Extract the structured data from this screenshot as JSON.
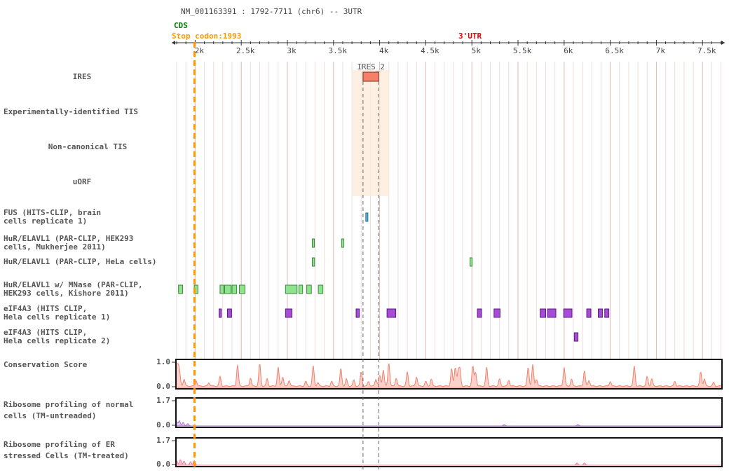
{
  "header": {
    "title": "NM_001163391 : 1792-7711 (chr6) -- 3UTR",
    "cds_label": "CDS",
    "stop_codon_label": "Stop codon:1993",
    "utr_label": "3'UTR"
  },
  "colors": {
    "cds": "#008000",
    "stop_codon": "#ff9900",
    "utr": "#ee0000",
    "ires": "#f4806c",
    "ires_highlight": "#fdebd9",
    "fus": "#5bb7e0",
    "hur": "#8fe38f",
    "eif4a3": "#a64dd6",
    "conservation": "#f4806c",
    "ribo_normal": "#b06fd8",
    "ribo_er": "#f47c9a",
    "gridline": "#e8c7c7"
  },
  "axis": {
    "range": [
      1792,
      7711
    ],
    "tick_labels": [
      "2k",
      "2.5k",
      "3k",
      "3.5k",
      "4k",
      "4.5k",
      "5k",
      "5.5k",
      "6k",
      "6.5k",
      "7k",
      "7.5k"
    ],
    "tick_values": [
      2000,
      2500,
      3000,
      3500,
      4000,
      4500,
      5000,
      5500,
      6000,
      6500,
      7000,
      7500
    ],
    "stop_codon_position": 1993
  },
  "tracks": [
    {
      "label": "IRES",
      "type": "ires",
      "features": [
        {
          "name": "IRES_2",
          "start": 3820,
          "end": 3990
        }
      ]
    },
    {
      "label": "Experimentally-identified TIS",
      "type": "empty",
      "features": []
    },
    {
      "label": "Non-canonical TIS",
      "type": "empty",
      "features": []
    },
    {
      "label": "uORF",
      "type": "empty",
      "features": []
    },
    {
      "label": "FUS (HITS-CLIP, brain\ncells replicate 1)",
      "type": "fus",
      "features": [
        {
          "start": 3850,
          "end": 3862
        }
      ]
    },
    {
      "label": "HuR/ELAVL1 (PAR-CLIP, HEK293\ncells, Mukherjee 2011)",
      "type": "hur",
      "features": [
        {
          "start": 3270,
          "end": 3288
        },
        {
          "start": 3588,
          "end": 3603
        }
      ]
    },
    {
      "label": "HuR/ELAVL1 (PAR-CLIP, HeLa cells)",
      "type": "hur",
      "features": [
        {
          "start": 3270,
          "end": 3295
        },
        {
          "start": 4980,
          "end": 4998
        }
      ]
    },
    {
      "label": "HuR/ELAVL1 w/ MNase (PAR-CLIP,\nHEK293 cells, Kishore 2011)",
      "type": "hur",
      "features": [
        {
          "start": 1820,
          "end": 1865
        },
        {
          "start": 1990,
          "end": 2030
        },
        {
          "start": 2270,
          "end": 2310
        },
        {
          "start": 2320,
          "end": 2390
        },
        {
          "start": 2400,
          "end": 2450
        },
        {
          "start": 2480,
          "end": 2540
        },
        {
          "start": 2980,
          "end": 3105
        },
        {
          "start": 3125,
          "end": 3165
        },
        {
          "start": 3210,
          "end": 3260
        },
        {
          "start": 3335,
          "end": 3385
        }
      ]
    },
    {
      "label": "eIF4A3 (HITS CLIP,\nHela cells replicate 1)",
      "type": "eif4a3",
      "features": [
        {
          "start": 2260,
          "end": 2285
        },
        {
          "start": 2350,
          "end": 2395
        },
        {
          "start": 2980,
          "end": 3050
        },
        {
          "start": 3745,
          "end": 3780
        },
        {
          "start": 4080,
          "end": 4175
        },
        {
          "start": 5060,
          "end": 5105
        },
        {
          "start": 5240,
          "end": 5305
        },
        {
          "start": 5740,
          "end": 5800
        },
        {
          "start": 5820,
          "end": 5910
        },
        {
          "start": 5995,
          "end": 6085
        },
        {
          "start": 6245,
          "end": 6290
        },
        {
          "start": 6370,
          "end": 6415
        },
        {
          "start": 6440,
          "end": 6485
        }
      ]
    },
    {
      "label": "eIF4A3 (HITS CLIP,\nHela cells replicate 2)",
      "type": "eif4a3",
      "features": [
        {
          "start": 6110,
          "end": 6150
        }
      ]
    }
  ],
  "signal_tracks": [
    {
      "label": "Conservation Score",
      "ymax": "1.0",
      "ymin": "0.0",
      "type": "conservation",
      "peaks": [
        {
          "x": 1795,
          "h": 0.95
        },
        {
          "x": 1810,
          "h": 0.9
        },
        {
          "x": 1830,
          "h": 0.6
        },
        {
          "x": 1880,
          "h": 0.3
        },
        {
          "x": 2010,
          "h": 0.25
        },
        {
          "x": 2150,
          "h": 0.15
        },
        {
          "x": 2270,
          "h": 0.4
        },
        {
          "x": 2460,
          "h": 0.9
        },
        {
          "x": 2600,
          "h": 0.35
        },
        {
          "x": 2700,
          "h": 0.95
        },
        {
          "x": 2780,
          "h": 0.3
        },
        {
          "x": 2900,
          "h": 0.8
        },
        {
          "x": 2950,
          "h": 0.4
        },
        {
          "x": 3020,
          "h": 0.25
        },
        {
          "x": 3200,
          "h": 0.2
        },
        {
          "x": 3280,
          "h": 0.85
        },
        {
          "x": 3330,
          "h": 0.15
        },
        {
          "x": 3480,
          "h": 0.2
        },
        {
          "x": 3580,
          "h": 0.75
        },
        {
          "x": 3640,
          "h": 0.3
        },
        {
          "x": 3720,
          "h": 0.25
        },
        {
          "x": 3800,
          "h": 0.6
        },
        {
          "x": 3880,
          "h": 0.2
        },
        {
          "x": 3960,
          "h": 0.3
        },
        {
          "x": 4000,
          "h": 0.45
        },
        {
          "x": 4040,
          "h": 0.7
        },
        {
          "x": 4100,
          "h": 1.0
        },
        {
          "x": 4180,
          "h": 0.35
        },
        {
          "x": 4300,
          "h": 0.6
        },
        {
          "x": 4400,
          "h": 0.4
        },
        {
          "x": 4500,
          "h": 0.2
        },
        {
          "x": 4560,
          "h": 0.3
        },
        {
          "x": 4780,
          "h": 0.75
        },
        {
          "x": 4820,
          "h": 0.8
        },
        {
          "x": 4850,
          "h": 0.55
        },
        {
          "x": 4870,
          "h": 0.7
        },
        {
          "x": 5010,
          "h": 0.85
        },
        {
          "x": 5040,
          "h": 0.6
        },
        {
          "x": 5160,
          "h": 0.8
        },
        {
          "x": 5300,
          "h": 0.3
        },
        {
          "x": 5400,
          "h": 0.25
        },
        {
          "x": 5610,
          "h": 0.8
        },
        {
          "x": 5660,
          "h": 0.9
        },
        {
          "x": 5700,
          "h": 0.3
        },
        {
          "x": 6000,
          "h": 0.8
        },
        {
          "x": 6080,
          "h": 0.3
        },
        {
          "x": 6220,
          "h": 0.65
        },
        {
          "x": 6270,
          "h": 0.25
        },
        {
          "x": 6500,
          "h": 0.2
        },
        {
          "x": 6760,
          "h": 0.85
        },
        {
          "x": 6900,
          "h": 0.4
        },
        {
          "x": 6950,
          "h": 0.3
        },
        {
          "x": 7200,
          "h": 0.2
        },
        {
          "x": 7480,
          "h": 0.6
        },
        {
          "x": 7520,
          "h": 0.3
        },
        {
          "x": 7620,
          "h": 0.15
        }
      ]
    },
    {
      "label": "Ribosome profiling of normal\ncells (TM-untreaded)",
      "ymax": "1.7",
      "ymin": "0.0",
      "type": "ribo_normal",
      "peaks": [
        {
          "x": 1800,
          "h": 0.18
        },
        {
          "x": 1830,
          "h": 0.22
        },
        {
          "x": 1870,
          "h": 0.15
        },
        {
          "x": 1920,
          "h": 0.1
        },
        {
          "x": 5350,
          "h": 0.06
        },
        {
          "x": 6150,
          "h": 0.06
        }
      ]
    },
    {
      "label": "Ribosome profiling of ER\nstressed Cells (TM-treated)",
      "ymax": "1.7",
      "ymin": "0.0",
      "type": "ribo_er",
      "peaks": [
        {
          "x": 1800,
          "h": 0.2
        },
        {
          "x": 1840,
          "h": 0.24
        },
        {
          "x": 1880,
          "h": 0.18
        },
        {
          "x": 1950,
          "h": 0.15
        },
        {
          "x": 1990,
          "h": 0.2
        },
        {
          "x": 6140,
          "h": 0.1
        },
        {
          "x": 6220,
          "h": 0.1
        }
      ]
    }
  ]
}
